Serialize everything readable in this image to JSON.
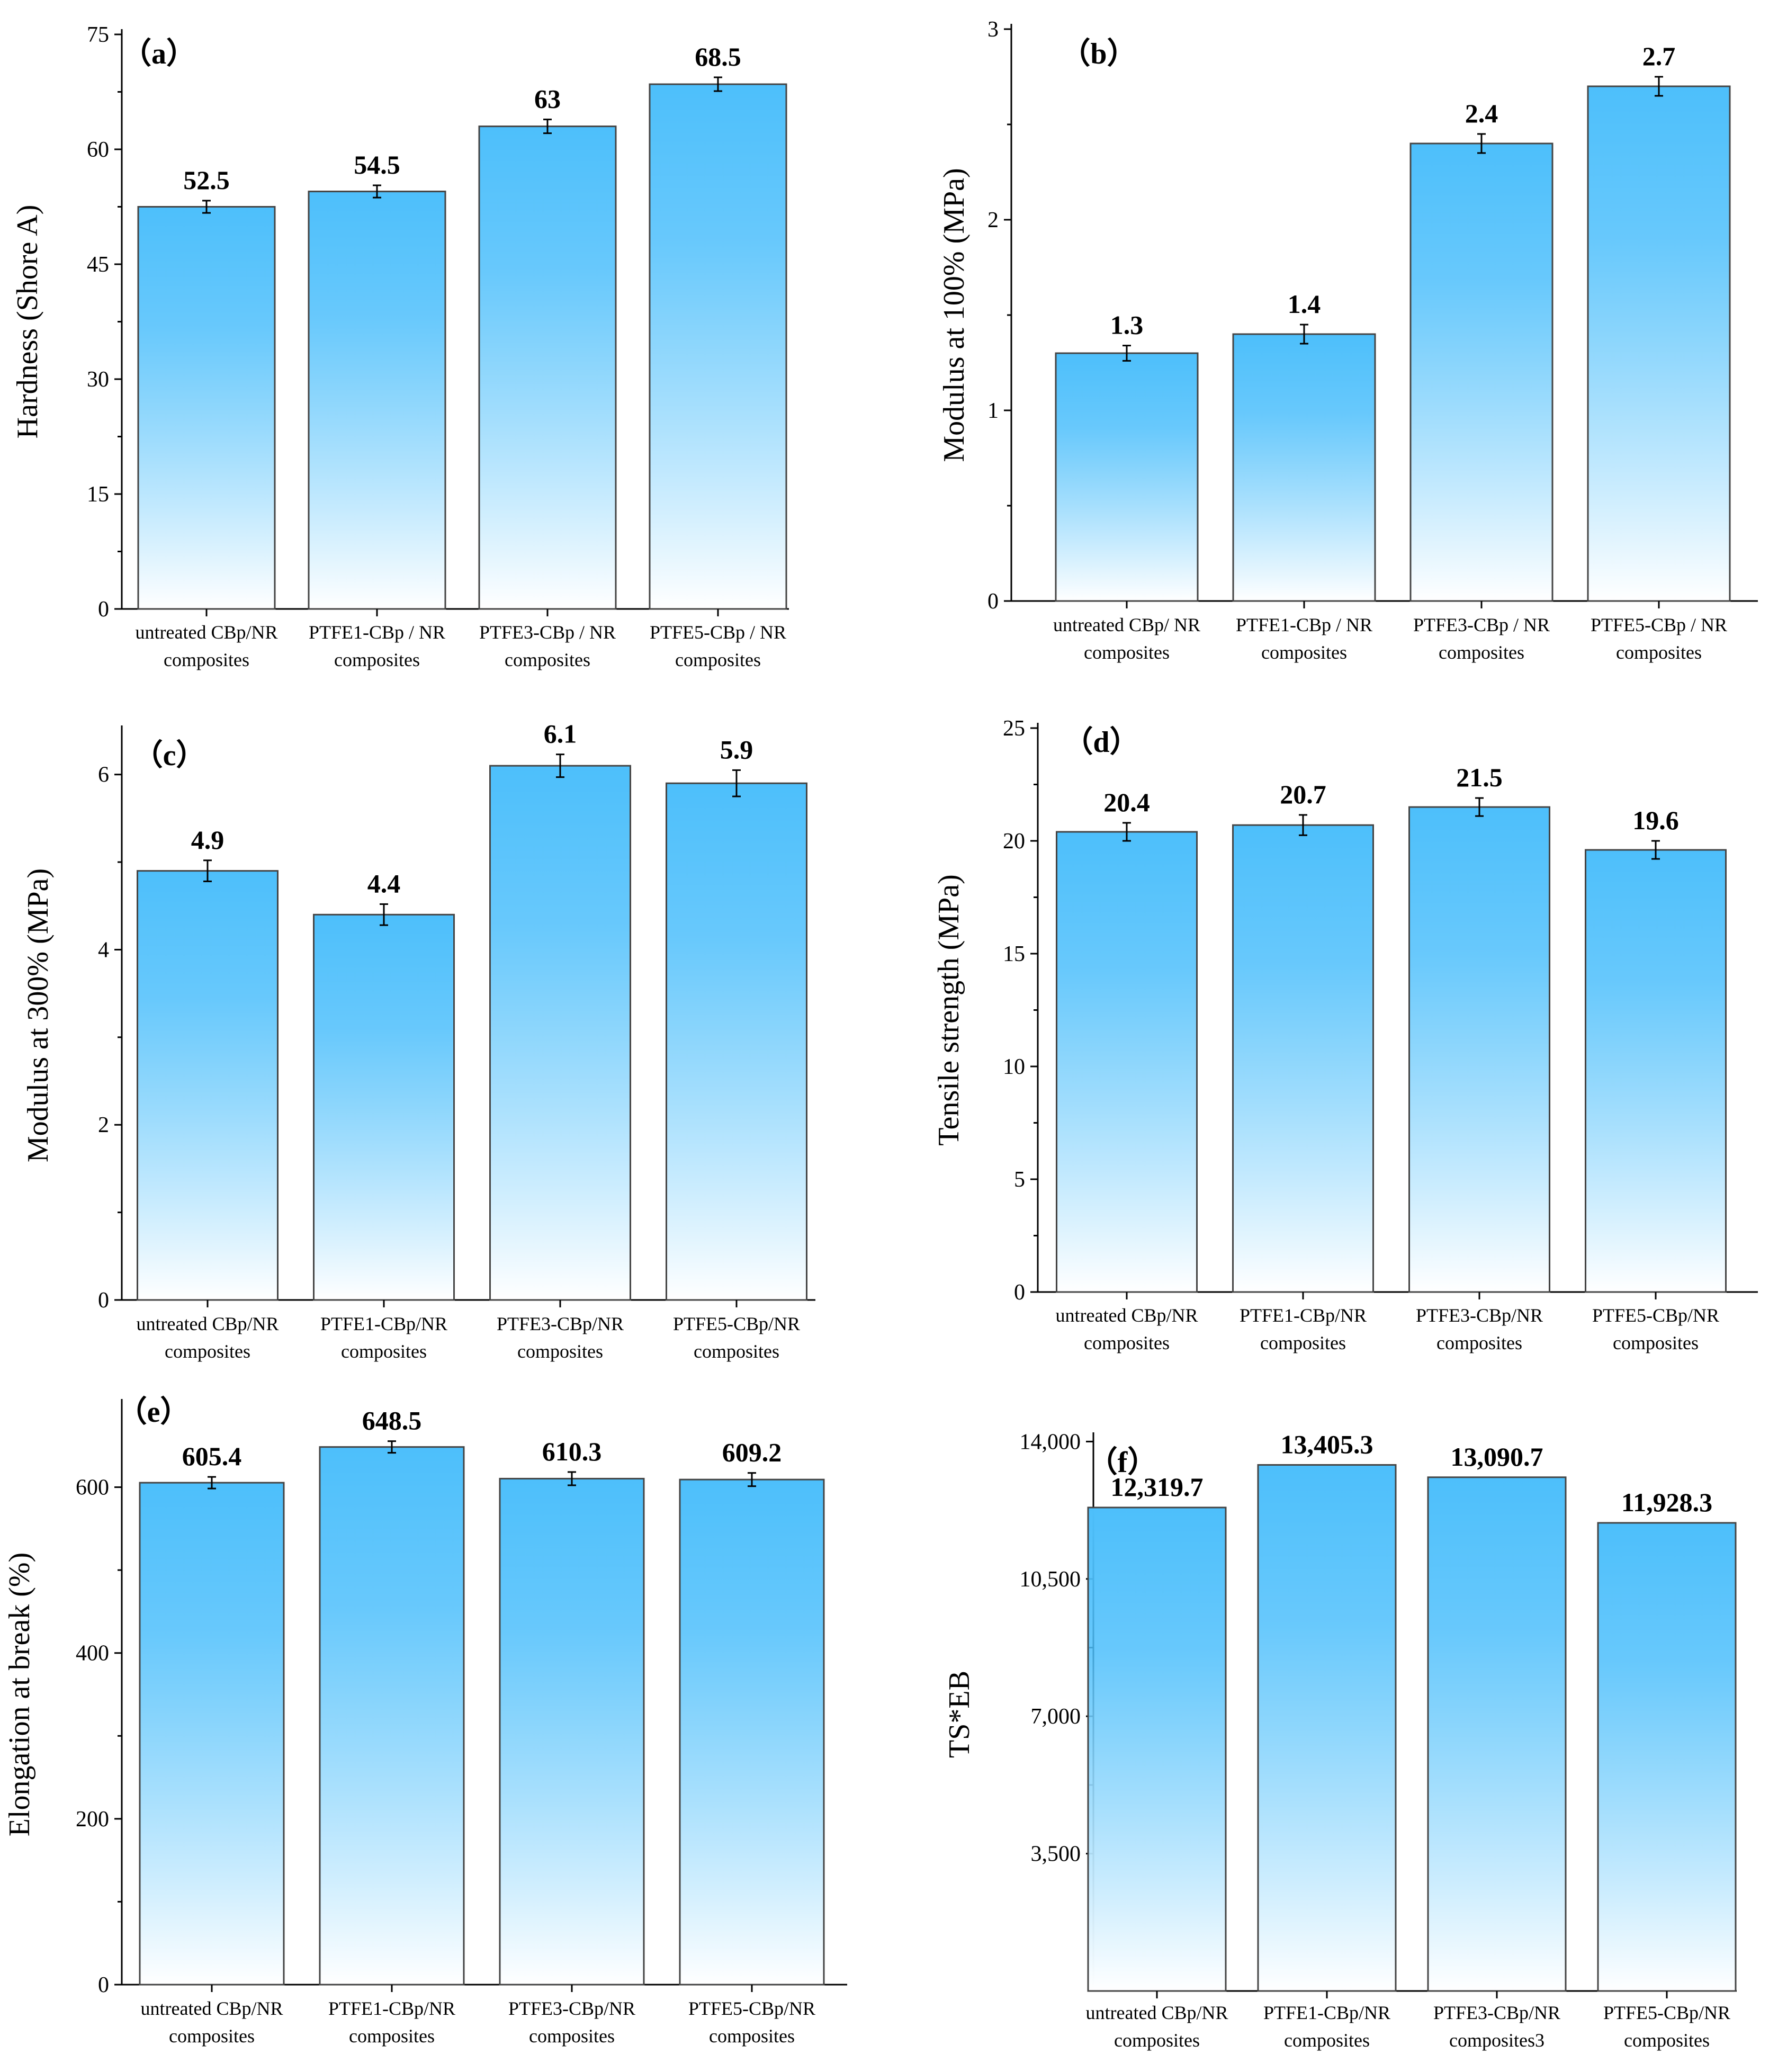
{
  "style": {
    "bar_top_color": "#4dbffb",
    "bar_bottom_color": "#ffffff",
    "bar_edge_color": "#444444"
  },
  "chart_data": [
    {
      "type": "bar",
      "panel_label": "（a）",
      "ylabel": "Hardness (Shore A)",
      "ylim": [
        0,
        75
      ],
      "yticks": [
        "0",
        "15",
        "30",
        "45",
        "60",
        "75"
      ],
      "categories": [
        [
          "untreated CBp/NR",
          "composites"
        ],
        [
          "PTFE1-CBp / NR",
          "composites"
        ],
        [
          "PTFE3-CBp / NR",
          "composites"
        ],
        [
          "PTFE5-CBp / NR",
          "composites"
        ]
      ],
      "values": [
        52.5,
        54.5,
        63,
        68.5
      ],
      "value_labels": [
        "52.5",
        "54.5",
        "63",
        "68.5"
      ],
      "errors": [
        0.8,
        0.8,
        0.9,
        0.9
      ]
    },
    {
      "type": "bar",
      "panel_label": "（b）",
      "ylabel": "Modulus at 100% (MPa)",
      "ylim": [
        0,
        3
      ],
      "yticks": [
        "0",
        "1",
        "2",
        "3"
      ],
      "categories": [
        [
          "untreated CBp/ NR",
          "composites"
        ],
        [
          "PTFE1-CBp / NR",
          "composites"
        ],
        [
          "PTFE3-CBp / NR",
          "composites"
        ],
        [
          "PTFE5-CBp / NR",
          "composites"
        ]
      ],
      "values": [
        1.3,
        1.4,
        2.4,
        2.7
      ],
      "value_labels": [
        "1.3",
        "1.4",
        "2.4",
        "2.7"
      ],
      "errors": [
        0.04,
        0.05,
        0.05,
        0.05
      ]
    },
    {
      "type": "bar",
      "panel_label": "（c）",
      "ylabel": "Modulus at 300% (MPa)",
      "ylim": [
        0,
        6.5
      ],
      "yticks": [
        "0",
        "2",
        "4",
        "6"
      ],
      "categories": [
        [
          "untreated CBp/NR",
          "composites"
        ],
        [
          "PTFE1-CBp/NR",
          "composites"
        ],
        [
          "PTFE3-CBp/NR",
          "composites"
        ],
        [
          "PTFE5-CBp/NR",
          "composites"
        ]
      ],
      "values": [
        4.9,
        4.4,
        6.1,
        5.9
      ],
      "value_labels": [
        "4.9",
        "4.4",
        "6.1",
        "5.9"
      ],
      "errors": [
        0.12,
        0.12,
        0.13,
        0.15
      ]
    },
    {
      "type": "bar",
      "panel_label": "（d）",
      "ylabel": "Tensile strength (MPa)",
      "ylim": [
        0,
        25
      ],
      "yticks": [
        "0",
        "5",
        "10",
        "15",
        "20",
        "25"
      ],
      "categories": [
        [
          "untreated CBp/NR",
          "composites"
        ],
        [
          "PTFE1-CBp/NR",
          "composites"
        ],
        [
          "PTFE3-CBp/NR",
          "composites"
        ],
        [
          "PTFE5-CBp/NR",
          "composites"
        ]
      ],
      "values": [
        20.4,
        20.7,
        21.5,
        19.6
      ],
      "value_labels": [
        "20.4",
        "20.7",
        "21.5",
        "19.6"
      ],
      "errors": [
        0.4,
        0.45,
        0.4,
        0.4
      ]
    },
    {
      "type": "bar",
      "panel_label": "（e）",
      "ylabel": "Elongation at break (%)",
      "ylim": [
        0,
        700
      ],
      "yticks": [
        "0",
        "200",
        "400",
        "600"
      ],
      "categories": [
        [
          "untreated CBp/NR",
          "composites"
        ],
        [
          "PTFE1-CBp/NR",
          "composites"
        ],
        [
          "PTFE3-CBp/NR",
          "composites"
        ],
        [
          "PTFE5-CBp/NR",
          "composites"
        ]
      ],
      "values": [
        605.4,
        648.5,
        610.3,
        609.2
      ],
      "value_labels": [
        "605.4",
        "648.5",
        "610.3",
        "609.2"
      ],
      "errors": [
        7,
        7,
        8,
        8
      ]
    },
    {
      "type": "bar",
      "panel_label": "（f）",
      "ylabel": "TS*EB",
      "ylim": [
        0,
        14100
      ],
      "ytick_values": [
        3500,
        7000,
        10500,
        14000
      ],
      "yticks": [
        "3,500",
        "7,000",
        "10,500",
        "14,000"
      ],
      "categories": [
        [
          "untreated CBp/NR",
          "composites"
        ],
        [
          "PTFE1-CBp/NR",
          "composites"
        ],
        [
          "PTFE3-CBp/NR",
          "composites3"
        ],
        [
          "PTFE5-CBp/NR",
          "composites"
        ]
      ],
      "values": [
        12319.7,
        13405.3,
        13090.7,
        11928.3
      ],
      "value_labels": [
        "12,319.7",
        "13,405.3",
        "13,090.7",
        "11,928.3"
      ],
      "errors": []
    }
  ]
}
